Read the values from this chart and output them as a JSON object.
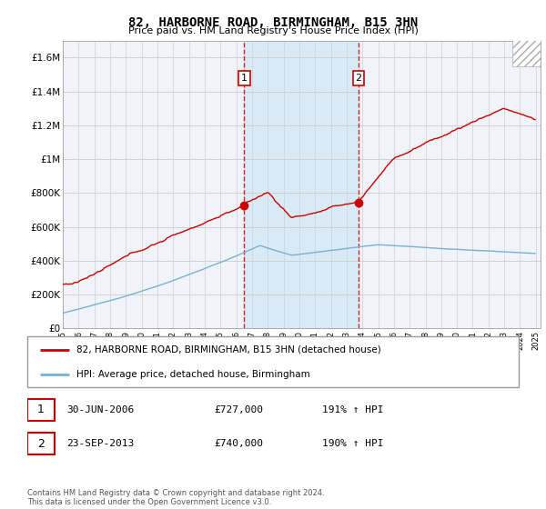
{
  "title": "82, HARBORNE ROAD, BIRMINGHAM, B15 3HN",
  "subtitle": "Price paid vs. HM Land Registry's House Price Index (HPI)",
  "ylim": [
    0,
    1700000
  ],
  "yticks": [
    0,
    200000,
    400000,
    600000,
    800000,
    1000000,
    1200000,
    1400000,
    1600000
  ],
  "ytick_labels": [
    "£0",
    "£200K",
    "£400K",
    "£600K",
    "£800K",
    "£1M",
    "£1.2M",
    "£1.4M",
    "£1.6M"
  ],
  "legend_line1": "82, HARBORNE ROAD, BIRMINGHAM, B15 3HN (detached house)",
  "legend_line2": "HPI: Average price, detached house, Birmingham",
  "sale1_date": "30-JUN-2006",
  "sale1_price": "£727,000",
  "sale1_hpi": "191% ↑ HPI",
  "sale1_label": "1",
  "sale1_year": 2006.5,
  "sale1_value": 727000,
  "sale2_date": "23-SEP-2013",
  "sale2_price": "£740,000",
  "sale2_hpi": "190% ↑ HPI",
  "sale2_label": "2",
  "sale2_year": 2013.75,
  "sale2_value": 740000,
  "footer": "Contains HM Land Registry data © Crown copyright and database right 2024.\nThis data is licensed under the Open Government Licence v3.0.",
  "hpi_color": "#7ab0d4",
  "price_color": "#cc0000",
  "shade_color": "#d8eaf5",
  "grid_color": "#cccccc",
  "bg_color": "#f0f4f8"
}
